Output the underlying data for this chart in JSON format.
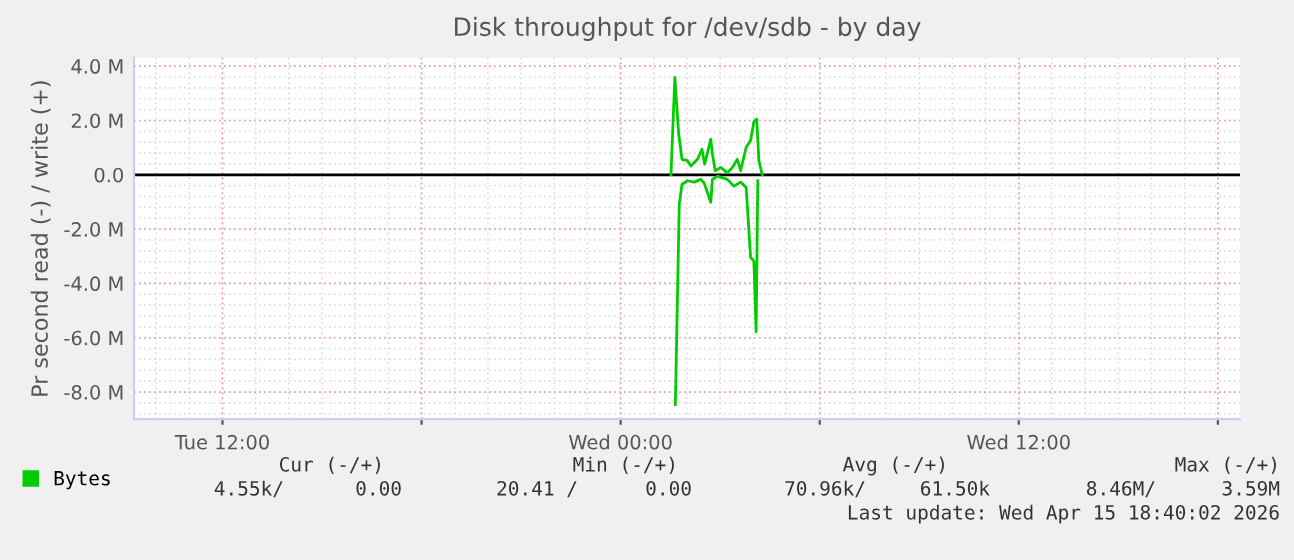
{
  "chart_data": {
    "type": "line",
    "title": "Disk throughput for /dev/sdb - by day",
    "ylabel": "Pr second read (-) / write (+)",
    "xlim": [
      "2026-04-14T09:20",
      "2026-04-15T18:40"
    ],
    "xticks": [
      {
        "value": "2026-04-14T12:00",
        "label": "Tue 12:00"
      },
      {
        "value": "2026-04-14T18:00",
        "label": null
      },
      {
        "value": "2026-04-15T00:00",
        "label": "Wed 00:00"
      },
      {
        "value": "2026-04-15T06:00",
        "label": null
      },
      {
        "value": "2026-04-15T12:00",
        "label": "Wed 12:00"
      },
      {
        "value": "2026-04-15T18:00",
        "label": null
      }
    ],
    "ylim": [
      -9.0,
      4.3
    ],
    "yticks": [
      {
        "value": 4,
        "label": "4.0 M"
      },
      {
        "value": 2,
        "label": "2.0 M"
      },
      {
        "value": 0,
        "label": "0.0"
      },
      {
        "value": -2,
        "label": "-2.0 M"
      },
      {
        "value": -4,
        "label": "-4.0 M"
      },
      {
        "value": -6,
        "label": "-6.0 M"
      },
      {
        "value": -8,
        "label": "-8.0 M"
      }
    ],
    "grid": true,
    "legend": "bottom left",
    "marker": "none",
    "line_style": "solid",
    "ref_lines": [
      {
        "axis": "y",
        "value": 0,
        "label": null,
        "color": "#000000"
      }
    ],
    "series": [
      {
        "name": "Bytes",
        "color": "#00cc00",
        "x": [
          "2026-04-15T01:31",
          "2026-04-15T01:38",
          "2026-04-15T01:45",
          "2026-04-15T01:51",
          "2026-04-15T02:01",
          "2026-04-15T02:07",
          "2026-04-15T02:19",
          "2026-04-15T02:27",
          "2026-04-15T02:32",
          "2026-04-15T02:43",
          "2026-04-15T02:46",
          "2026-04-15T02:51",
          "2026-04-15T03:01",
          "2026-04-15T03:13",
          "2026-04-15T03:22",
          "2026-04-15T03:31",
          "2026-04-15T03:37",
          "2026-04-15T03:47",
          "2026-04-15T03:55",
          "2026-04-15T04:01",
          "2026-04-15T04:06",
          "2026-04-15T04:10",
          "2026-04-15T04:16"
        ],
        "values": [
          0,
          3.59,
          1.5,
          0.57,
          0.52,
          0.32,
          0.57,
          0.94,
          0.39,
          1.31,
          0.76,
          0.15,
          0.27,
          0.07,
          0.27,
          0.57,
          0.15,
          1.01,
          1.26,
          1.95,
          2.05,
          0.52,
          0
        ]
      },
      {
        "color": "#00cc00",
        "x": [
          "2026-04-15T01:39",
          "2026-04-15T01:46",
          "2026-04-15T01:51",
          "2026-04-15T02:01",
          "2026-04-15T02:13",
          "2026-04-15T02:25",
          "2026-04-15T02:31",
          "2026-04-15T02:43",
          "2026-04-15T02:46",
          "2026-04-15T02:55",
          "2026-04-15T03:13",
          "2026-04-15T03:25",
          "2026-04-15T03:37",
          "2026-04-15T03:47",
          "2026-04-15T03:55",
          "2026-04-15T04:01",
          "2026-04-15T04:05",
          "2026-04-15T04:08"
        ],
        "values": [
          -8.46,
          -1.09,
          -0.35,
          -0.22,
          -0.27,
          -0.17,
          -0.3,
          -1.01,
          -0.17,
          -0.05,
          -0.17,
          -0.42,
          -0.27,
          -0.47,
          -3.04,
          -3.19,
          -5.78,
          -0.22
        ]
      }
    ],
    "annotations": [
      "Cur (-/+)",
      "Min (-/+)",
      "Avg (-/+)",
      "Max (-/+)",
      "4.55k/",
      "0.00",
      "20.41 /",
      "0.00",
      "70.96k/",
      "61.50k",
      "8.46M/",
      "3.59M",
      "Last update: Wed Apr 15 18:40:02 2026"
    ]
  }
}
